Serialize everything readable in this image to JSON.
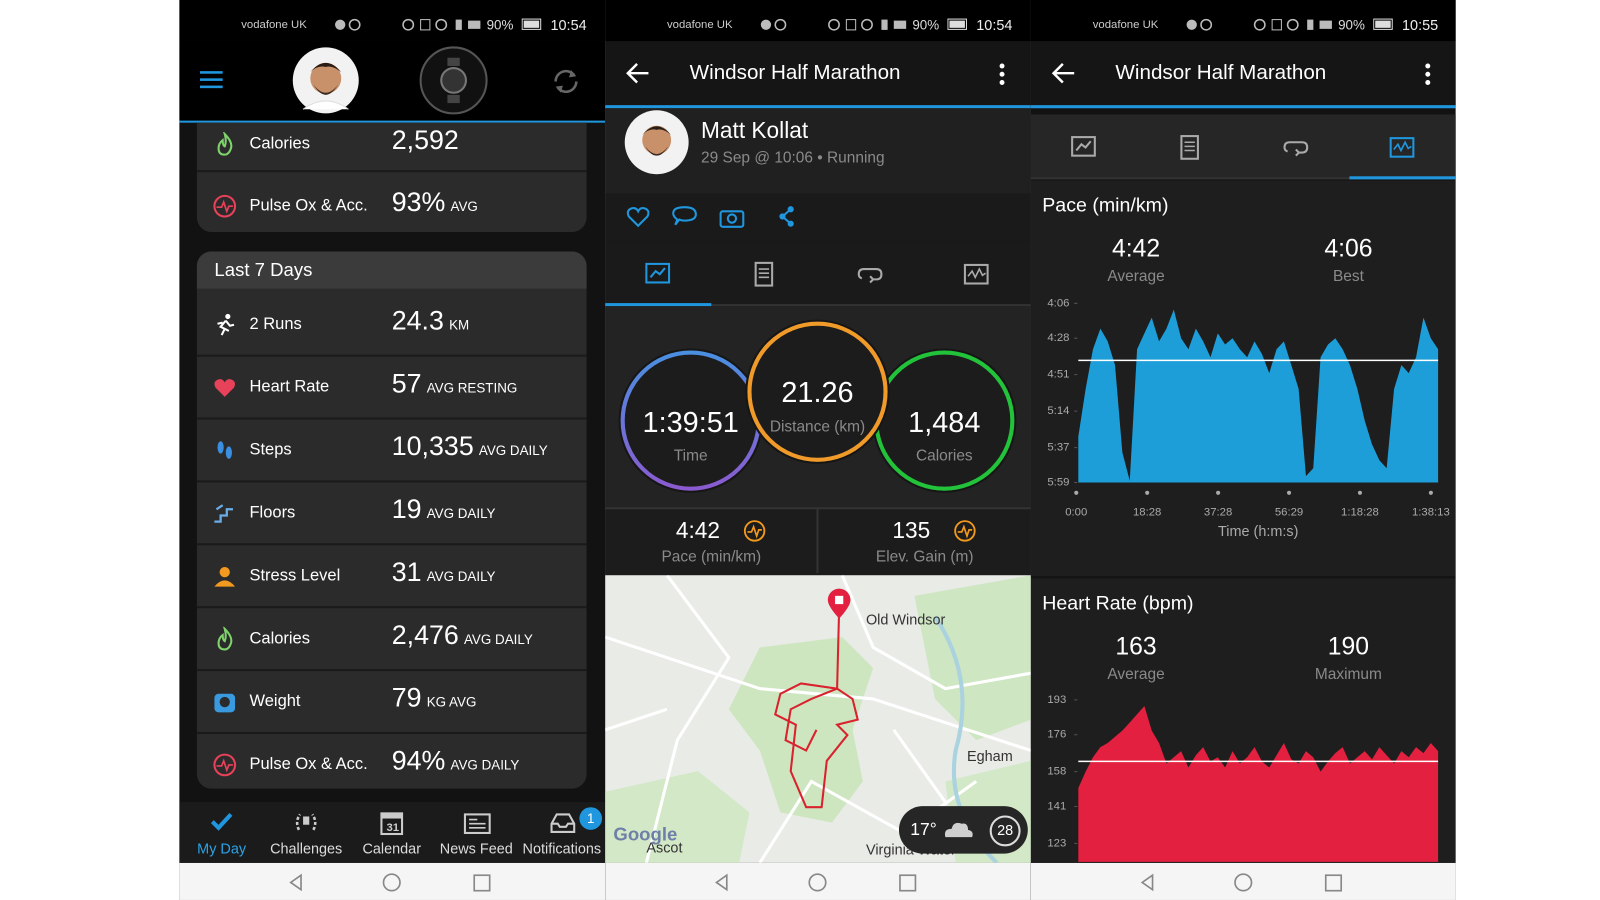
{
  "status_bars": [
    {
      "carrier": "vodafone UK",
      "battery": "90%",
      "time": "10:54"
    },
    {
      "carrier": "vodafone UK",
      "battery": "90%",
      "time": "10:54"
    },
    {
      "carrier": "vodafone UK",
      "battery": "90%",
      "time": "10:55"
    }
  ],
  "my_day": {
    "today_rows": [
      {
        "label": "Calories",
        "value": "2,592"
      },
      {
        "label": "Pulse Ox & Acc.",
        "value": "93%",
        "unit": "AVG"
      }
    ],
    "last_7_days": {
      "title": "Last 7 Days",
      "rows": [
        {
          "label": "2 Runs",
          "value": "24.3",
          "unit": "KM"
        },
        {
          "label": "Heart Rate",
          "value": "57",
          "unit": "AVG RESTING"
        },
        {
          "label": "Steps",
          "value": "10,335",
          "unit": "AVG DAILY"
        },
        {
          "label": "Floors",
          "value": "19",
          "unit": "AVG DAILY"
        },
        {
          "label": "Stress Level",
          "value": "31",
          "unit": "AVG DAILY"
        },
        {
          "label": "Calories",
          "value": "2,476",
          "unit": "AVG DAILY"
        },
        {
          "label": "Weight",
          "value": "79",
          "unit": "KG AVG"
        },
        {
          "label": "Pulse Ox & Acc.",
          "value": "94%",
          "unit": "AVG DAILY"
        }
      ]
    },
    "nav": {
      "items": [
        "My Day",
        "Challenges",
        "Calendar",
        "News Feed",
        "Notifications"
      ],
      "calendar_icon": "31",
      "badge": "1"
    }
  },
  "activity": {
    "title": "Windsor Half Marathon",
    "athlete": "Matt Kollat",
    "subtitle": "29 Sep @ 10:06 • Running",
    "rings": [
      {
        "value": "1:39:51",
        "label": "Time"
      },
      {
        "value": "21.26",
        "label": "Distance (km)"
      },
      {
        "value": "1,484",
        "label": "Calories"
      }
    ],
    "stats": [
      {
        "value": "4:42",
        "label": "Pace (min/km)"
      },
      {
        "value": "135",
        "label": "Elev. Gain (m)"
      }
    ],
    "map": {
      "places": [
        "Old Windsor",
        "Egham",
        "Ascot",
        "Virginia Water"
      ],
      "brand": "Google",
      "temperature": "17°",
      "weather_badge": "28"
    }
  },
  "stats_screen": {
    "title": "Windsor Half Marathon",
    "pace": {
      "title": "Pace (min/km)",
      "summary": [
        {
          "value": "4:42",
          "label": "Average"
        },
        {
          "value": "4:06",
          "label": "Best"
        }
      ],
      "chart": {
        "type": "area",
        "inverted": true,
        "color": "#1e9ed8",
        "ylim": [
          240,
          359
        ],
        "yticks": [
          {
            "value": 246,
            "label": "4:06"
          },
          {
            "value": 268,
            "label": "4:28"
          },
          {
            "value": 291,
            "label": "4:51"
          },
          {
            "value": 314,
            "label": "5:14"
          },
          {
            "value": 337,
            "label": "5:37"
          },
          {
            "value": 359,
            "label": "5:59"
          }
        ],
        "xtick_labels": [
          "0:00",
          "18:28",
          "37:28",
          "56:29",
          "1:18:28",
          "1:38:13"
        ],
        "xlabel": "Time (h:m:s)",
        "average_line": 282,
        "values": [
          330,
          300,
          275,
          262,
          270,
          285,
          340,
          358,
          275,
          265,
          255,
          270,
          262,
          250,
          268,
          275,
          262,
          270,
          280,
          265,
          272,
          268,
          275,
          280,
          270,
          278,
          290,
          275,
          270,
          285,
          300,
          355,
          350,
          280,
          272,
          268,
          275,
          285,
          300,
          320,
          335,
          345,
          350,
          300,
          285,
          290,
          280,
          255,
          268,
          275
        ]
      }
    },
    "heart_rate": {
      "title": "Heart Rate (bpm)",
      "summary": [
        {
          "value": "163",
          "label": "Average"
        },
        {
          "value": "190",
          "label": "Maximum"
        }
      ],
      "chart": {
        "type": "area",
        "color": "#e3203f",
        "ylim": [
          114,
          200
        ],
        "yticks": [
          193,
          176,
          158,
          141,
          123
        ],
        "average_line": 163,
        "values": [
          150,
          158,
          165,
          170,
          172,
          175,
          178,
          182,
          186,
          190,
          178,
          172,
          162,
          165,
          168,
          160,
          166,
          170,
          163,
          165,
          160,
          168,
          162,
          165,
          170,
          163,
          160,
          166,
          172,
          164,
          162,
          168,
          165,
          158,
          163,
          167,
          170,
          162,
          165,
          168,
          164,
          170,
          166,
          162,
          168,
          165,
          170,
          167,
          172,
          168
        ]
      }
    }
  }
}
